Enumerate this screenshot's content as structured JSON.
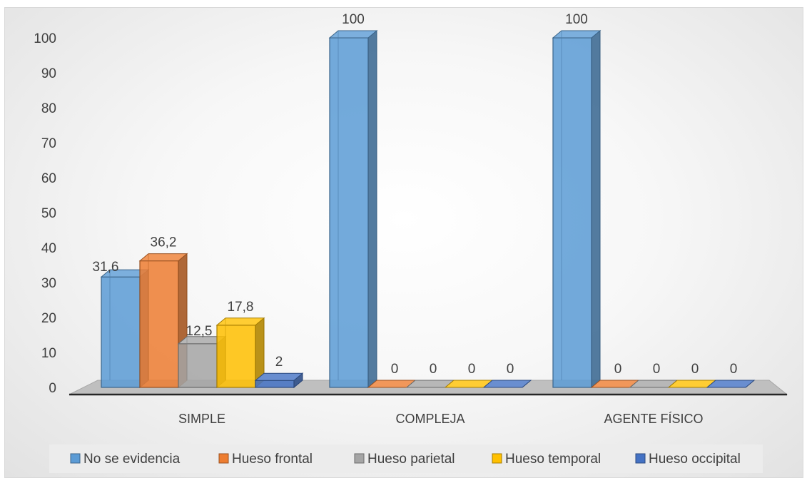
{
  "chart_data": {
    "type": "bar",
    "title": "",
    "xlabel": "",
    "ylabel": "",
    "ylim": [
      0,
      100
    ],
    "yticks": [
      0,
      10,
      20,
      30,
      40,
      50,
      60,
      70,
      80,
      90,
      100
    ],
    "categories": [
      "SIMPLE",
      "COMPLEJA",
      "AGENTE FÍSICO"
    ],
    "series": [
      {
        "name": "No se evidencia",
        "values": [
          31.6,
          100,
          100
        ],
        "labels": [
          "31,6",
          "100",
          "100"
        ],
        "color": "#5B9BD5"
      },
      {
        "name": "Hueso frontal",
        "values": [
          36.2,
          0,
          0
        ],
        "labels": [
          "36,2",
          "0",
          "0"
        ],
        "color": "#ED7D31"
      },
      {
        "name": "Hueso parietal",
        "values": [
          12.5,
          0,
          0
        ],
        "labels": [
          "12,5",
          "0",
          "0"
        ],
        "color": "#A5A5A5"
      },
      {
        "name": "Hueso temporal",
        "values": [
          17.8,
          0,
          0
        ],
        "labels": [
          "17,8",
          "0",
          "0"
        ],
        "color": "#FFC000"
      },
      {
        "name": "Hueso occipital",
        "values": [
          2,
          0,
          0
        ],
        "labels": [
          "2",
          "0",
          "0"
        ],
        "color": "#4472C4"
      }
    ],
    "style": "3d-clustered-column",
    "grid": false,
    "legend_position": "bottom"
  }
}
